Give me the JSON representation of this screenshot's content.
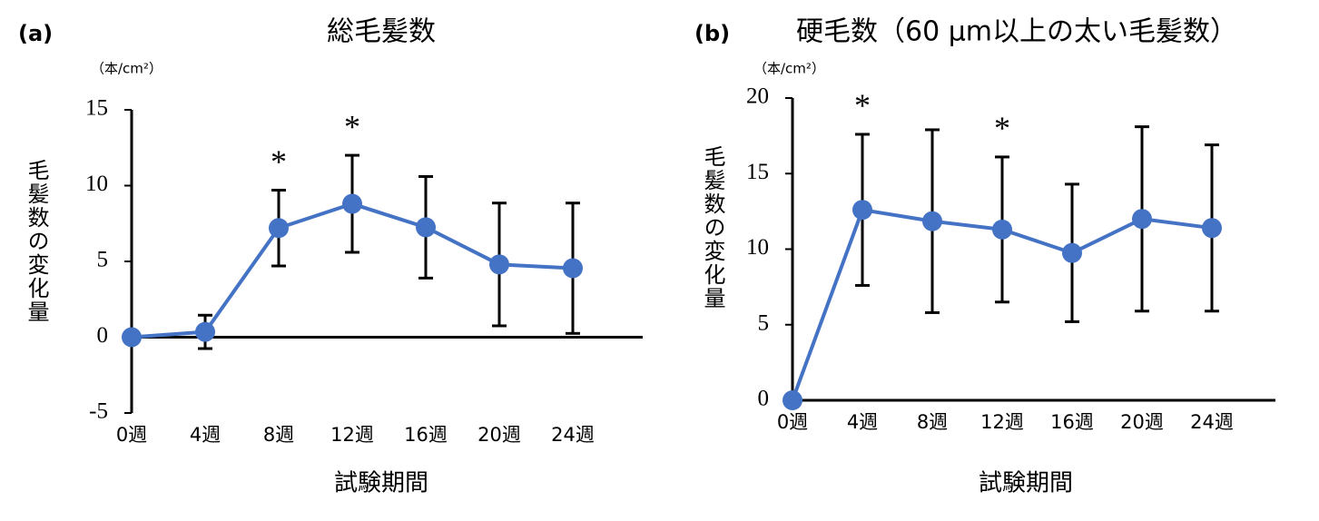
{
  "chart_data": [
    {
      "type": "line",
      "panel_label": "(a)",
      "title": "総毛髪数",
      "unit_label": "（本/cm²）",
      "y_label": "毛髪数の変化量",
      "x_label": "試験期間",
      "categories": [
        "0週",
        "4週",
        "8週",
        "12週",
        "16週",
        "20週",
        "24週"
      ],
      "series": [
        {
          "color": "#4472c4",
          "values": [
            0,
            0.35,
            7.2,
            8.8,
            7.25,
            4.8,
            4.55
          ],
          "errors": [
            null,
            1.1,
            2.5,
            3.2,
            3.35,
            4.05,
            4.3
          ]
        }
      ],
      "annotations": [
        {
          "text": "*",
          "x": "8週"
        },
        {
          "text": "*",
          "x": "12週"
        }
      ],
      "ylim": [
        -5,
        15
      ],
      "yticks": [
        -5,
        0,
        5,
        10,
        15
      ]
    },
    {
      "type": "line",
      "panel_label": "(b)",
      "title": "硬毛数（60 µm以上の太い毛髪数）",
      "unit_label": "（本/cm²）",
      "y_label": "毛髪数の変化量",
      "x_label": "試験期間",
      "categories": [
        "0週",
        "4週",
        "8週",
        "12週",
        "16週",
        "20週",
        "24週"
      ],
      "series": [
        {
          "color": "#4472c4",
          "values": [
            0,
            12.6,
            11.85,
            11.3,
            9.75,
            12.0,
            11.4
          ],
          "errors": [
            null,
            5.0,
            6.05,
            4.8,
            4.55,
            6.1,
            5.5
          ]
        }
      ],
      "annotations": [
        {
          "text": "*",
          "x": "4週"
        },
        {
          "text": "*",
          "x": "12週"
        }
      ],
      "ylim": [
        0,
        20
      ],
      "yticks": [
        0,
        5,
        10,
        15,
        20
      ]
    }
  ]
}
